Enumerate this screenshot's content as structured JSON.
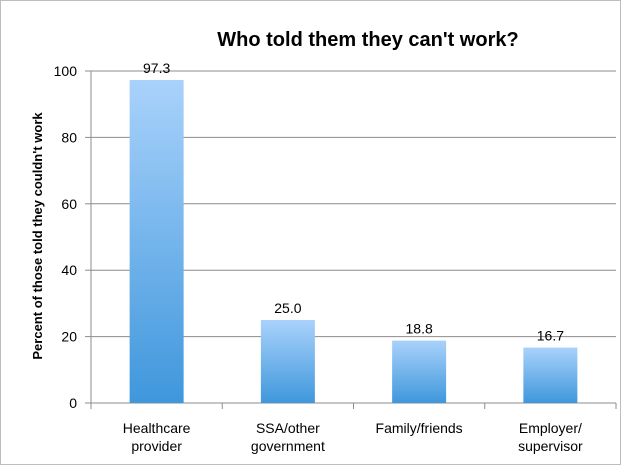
{
  "chart_data": {
    "type": "bar",
    "title": "Who told them they can't work?",
    "xlabel": "",
    "ylabel": "Percent of those told they couldn't work",
    "ylim": [
      0,
      100
    ],
    "yticks": [
      0,
      20,
      40,
      60,
      80,
      100
    ],
    "grid": true,
    "legend": "none",
    "categories": [
      [
        "Healthcare",
        "provider"
      ],
      [
        "SSA/other",
        "government"
      ],
      [
        "Family/friends"
      ],
      [
        "Employer/",
        "supervisor"
      ]
    ],
    "values": [
      97.3,
      25.0,
      18.8,
      16.7
    ],
    "data_labels": [
      "97.3",
      "25.0",
      "18.8",
      "16.7"
    ],
    "colors": {
      "bar_top": "#a9d2fb",
      "bar_bottom": "#3f97dc",
      "grid": "#8c8c8c"
    }
  }
}
